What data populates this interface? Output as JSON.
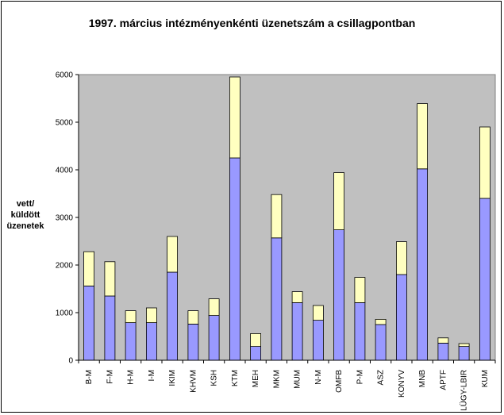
{
  "chart_data": {
    "type": "bar",
    "stacked": true,
    "title": "1997. március intézményenkénti üzenetszám a csillagpontban",
    "ylabel_lines": [
      "vett/",
      "küldött",
      "üzenetek"
    ],
    "xlabel": "",
    "ylim": [
      0,
      6000
    ],
    "yticks": [
      0,
      1000,
      2000,
      3000,
      4000,
      5000,
      6000
    ],
    "grid": false,
    "legend": "none",
    "categories": [
      "B-M",
      "F-M",
      "H-M",
      "I-M",
      "IKIM",
      "KHVM",
      "KSH",
      "KTM",
      "MEH",
      "MKM",
      "MUM",
      "N-M",
      "OMFB",
      "P-M",
      "ASZ",
      "KONYV",
      "MNB",
      "APTF",
      "LÜGY-LBIR",
      "KUM"
    ],
    "series": [
      {
        "color": "#9999ff",
        "values": [
          1560,
          1350,
          790,
          790,
          1850,
          760,
          940,
          4250,
          290,
          2570,
          1210,
          840,
          2740,
          1210,
          750,
          1800,
          4020,
          360,
          290,
          3400
        ]
      },
      {
        "color": "#ffffc0",
        "values": [
          720,
          720,
          250,
          310,
          750,
          280,
          350,
          1700,
          270,
          910,
          230,
          310,
          1200,
          530,
          110,
          690,
          1370,
          110,
          60,
          1500
        ]
      }
    ],
    "colors": {
      "plot_area": "#c0c0c0",
      "background": "#ffffff",
      "axis": "#000000"
    }
  }
}
